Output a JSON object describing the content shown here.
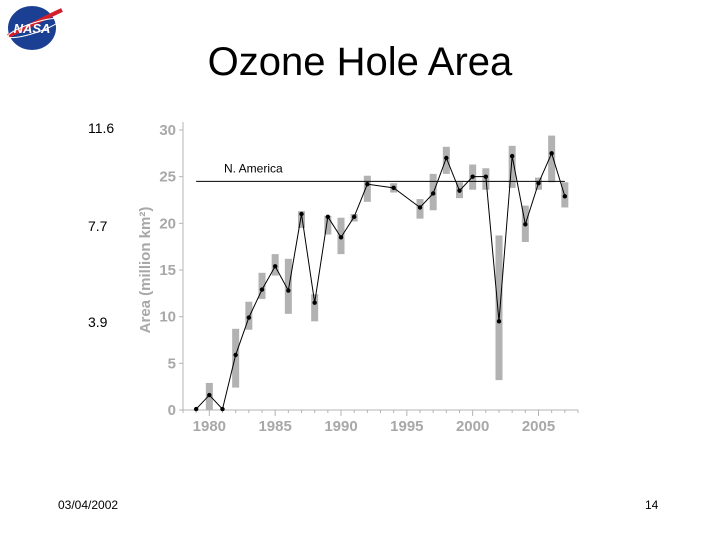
{
  "slide": {
    "title": "Ozone Hole Area",
    "side_labels": [
      "11.6",
      "7.7",
      "3.9"
    ],
    "date": "03/04/2002",
    "page_number": "14",
    "logo_text": "NASA"
  },
  "chart_data": {
    "type": "line",
    "ylabel": "Area (million km²)",
    "xlim": [
      1978,
      2008
    ],
    "ylim": [
      0,
      30
    ],
    "x_ticks": [
      1980,
      1985,
      1990,
      1995,
      2000,
      2005
    ],
    "y_ticks": [
      0,
      5,
      10,
      15,
      20,
      25,
      30
    ],
    "reference_line": {
      "label": "N. America",
      "y": 24.5
    },
    "series": [
      {
        "x": [
          1979,
          1980,
          1981,
          1982,
          1983,
          1984,
          1985,
          1986,
          1987,
          1988,
          1989,
          1990,
          1991,
          1992,
          1994,
          1996,
          1997,
          1998,
          1999,
          2000,
          2001,
          2002,
          2003,
          2004,
          2005,
          2006,
          2007
        ],
        "y": [
          0.1,
          1.6,
          0.1,
          5.9,
          9.9,
          12.9,
          15.4,
          12.8,
          21.0,
          11.5,
          20.7,
          18.5,
          20.7,
          24.2,
          23.8,
          21.7,
          23.2,
          27.0,
          23.5,
          25.0,
          25.0,
          9.5,
          27.2,
          19.9,
          24.3,
          27.5,
          22.9
        ]
      }
    ],
    "error_bars": {
      "low": [
        0.0,
        0.0,
        0.0,
        2.4,
        8.6,
        11.9,
        14.4,
        10.3,
        19.5,
        9.5,
        18.8,
        16.7,
        20.2,
        22.3,
        23.3,
        20.5,
        21.4,
        25.3,
        22.7,
        23.6,
        23.6,
        3.2,
        23.8,
        18.0,
        23.6,
        24.4,
        21.7
      ],
      "high": [
        0.0,
        2.9,
        0.0,
        8.7,
        11.6,
        14.7,
        16.7,
        16.2,
        21.3,
        12.4,
        20.8,
        20.6,
        21.0,
        25.1,
        24.3,
        22.6,
        25.3,
        28.2,
        24.4,
        26.3,
        25.9,
        18.7,
        28.3,
        21.9,
        24.9,
        29.4,
        24.4
      ]
    }
  }
}
